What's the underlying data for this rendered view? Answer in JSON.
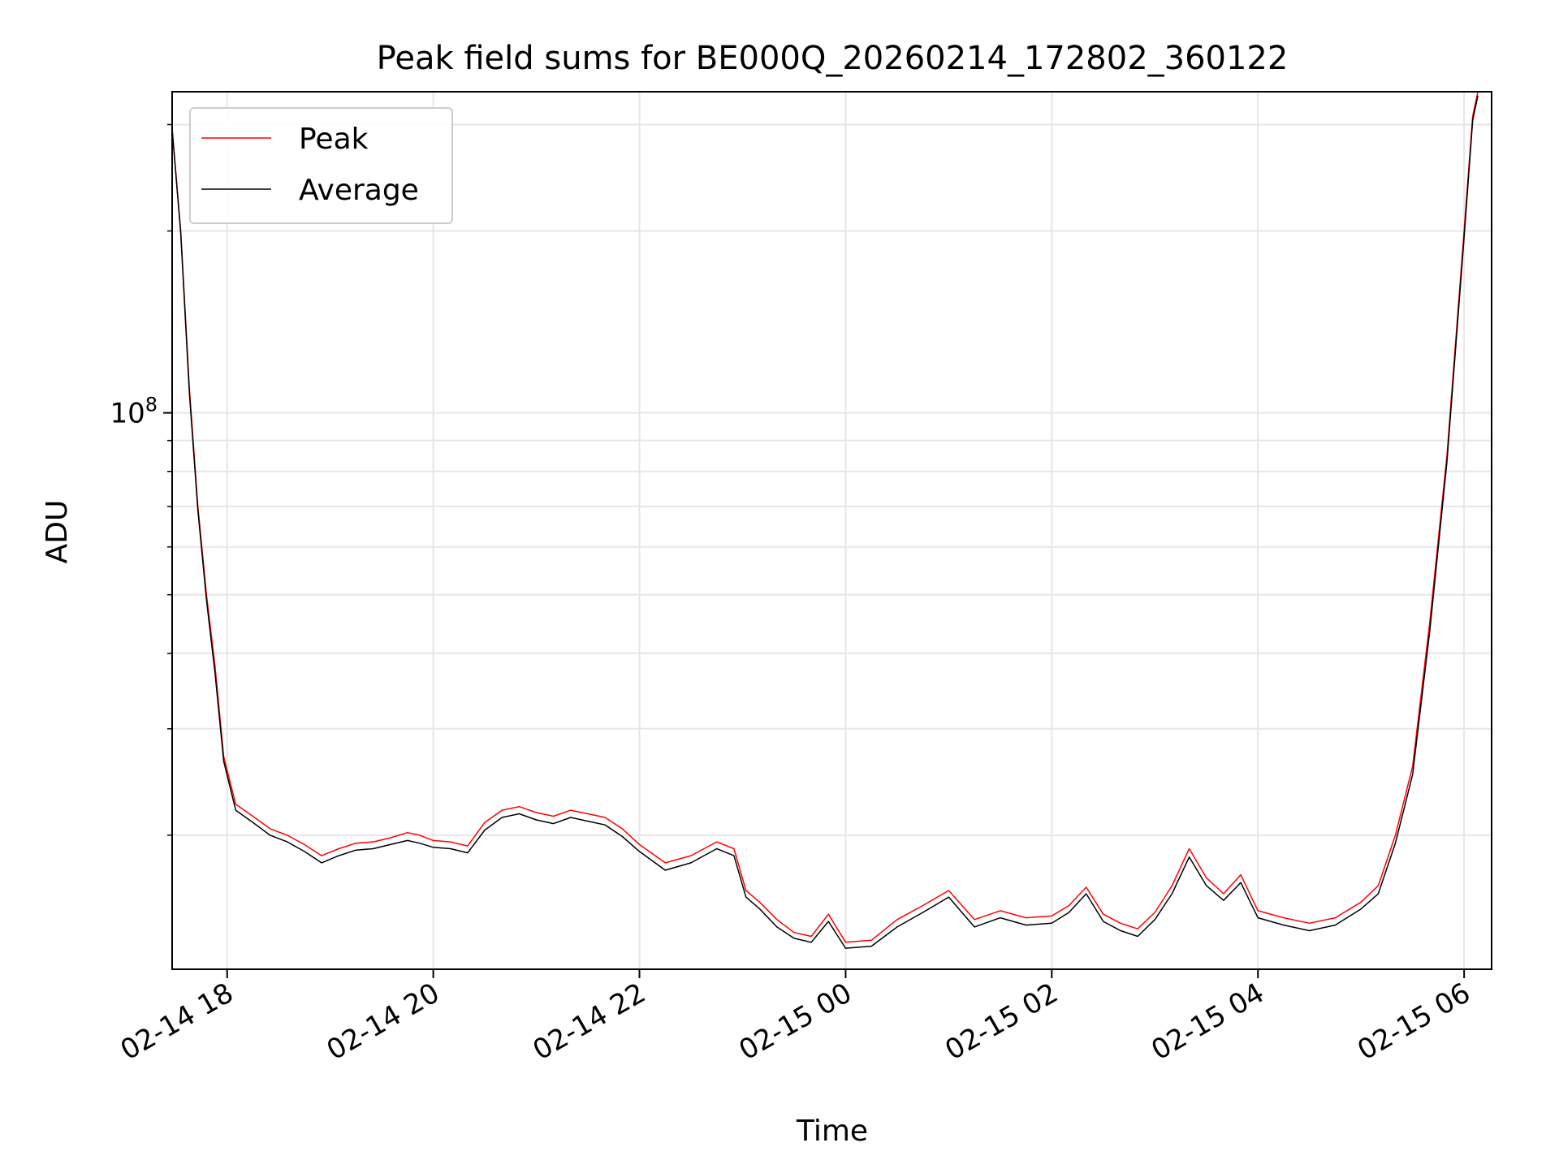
{
  "chart_data": {
    "type": "line",
    "title": "Peak field sums for BE000Q_20260214_172802_360122",
    "xlabel": "Time",
    "ylabel": "ADU",
    "yscale": "log",
    "grid": true,
    "legend_placement": "top-left",
    "xlim": [
      "2026-02-14 17:28",
      "2026-02-15 06:16"
    ],
    "ylim": [
      12000000,
      340000000
    ],
    "x_ticks": [
      {
        "value": "2026-02-14 18:00",
        "label": "02-14 18"
      },
      {
        "value": "2026-02-14 20:00",
        "label": "02-14 20"
      },
      {
        "value": "2026-02-14 22:00",
        "label": "02-14 22"
      },
      {
        "value": "2026-02-15 00:00",
        "label": "02-15 00"
      },
      {
        "value": "2026-02-15 02:00",
        "label": "02-15 02"
      },
      {
        "value": "2026-02-15 04:00",
        "label": "02-15 04"
      },
      {
        "value": "2026-02-15 06:00",
        "label": "02-15 06"
      }
    ],
    "y_major_ticks": [
      {
        "value": 100000000,
        "base": "10",
        "exp": "8"
      }
    ],
    "y_minor_ticks": [
      20000000,
      30000000,
      40000000,
      50000000,
      60000000,
      70000000,
      80000000,
      90000000,
      200000000,
      300000000
    ],
    "series": [
      {
        "name": "Peak",
        "color": "#ff0000",
        "x": [
          "2026-02-14 17:28",
          "2026-02-14 17:33",
          "2026-02-14 17:38",
          "2026-02-14 17:43",
          "2026-02-14 17:48",
          "2026-02-14 17:53",
          "2026-02-14 17:58",
          "2026-02-14 18:05",
          "2026-02-14 18:15",
          "2026-02-14 18:25",
          "2026-02-14 18:35",
          "2026-02-14 18:45",
          "2026-02-14 18:55",
          "2026-02-14 19:05",
          "2026-02-14 19:15",
          "2026-02-14 19:25",
          "2026-02-14 19:35",
          "2026-02-14 19:45",
          "2026-02-14 19:52",
          "2026-02-14 20:00",
          "2026-02-14 20:10",
          "2026-02-14 20:20",
          "2026-02-14 20:30",
          "2026-02-14 20:40",
          "2026-02-14 20:50",
          "2026-02-14 21:00",
          "2026-02-14 21:10",
          "2026-02-14 21:20",
          "2026-02-14 21:30",
          "2026-02-14 21:40",
          "2026-02-14 21:50",
          "2026-02-14 22:00",
          "2026-02-14 22:15",
          "2026-02-14 22:30",
          "2026-02-14 22:45",
          "2026-02-14 22:55",
          "2026-02-14 23:02",
          "2026-02-14 23:10",
          "2026-02-14 23:20",
          "2026-02-14 23:30",
          "2026-02-14 23:40",
          "2026-02-14 23:50",
          "2026-02-15 00:00",
          "2026-02-15 00:15",
          "2026-02-15 00:30",
          "2026-02-15 00:45",
          "2026-02-15 01:00",
          "2026-02-15 01:15",
          "2026-02-15 01:30",
          "2026-02-15 01:45",
          "2026-02-15 02:00",
          "2026-02-15 02:10",
          "2026-02-15 02:20",
          "2026-02-15 02:30",
          "2026-02-15 02:40",
          "2026-02-15 02:50",
          "2026-02-15 03:00",
          "2026-02-15 03:10",
          "2026-02-15 03:20",
          "2026-02-15 03:30",
          "2026-02-15 03:40",
          "2026-02-15 03:50",
          "2026-02-15 04:00",
          "2026-02-15 04:15",
          "2026-02-15 04:30",
          "2026-02-15 04:45",
          "2026-02-15 05:00",
          "2026-02-15 05:10",
          "2026-02-15 05:20",
          "2026-02-15 05:30",
          "2026-02-15 05:40",
          "2026-02-15 05:50",
          "2026-02-15 06:00",
          "2026-02-15 06:05",
          "2026-02-15 06:08"
        ],
        "values": [
          295000000,
          200000000,
          110000000,
          70000000,
          50000000,
          38000000,
          27000000,
          22500000,
          21500000,
          20500000,
          20000000,
          19300000,
          18500000,
          19000000,
          19400000,
          19500000,
          19800000,
          20200000,
          20000000,
          19600000,
          19500000,
          19200000,
          21000000,
          22000000,
          22300000,
          21800000,
          21500000,
          22000000,
          21700000,
          21400000,
          20500000,
          19300000,
          18000000,
          18500000,
          19500000,
          19000000,
          16200000,
          15500000,
          14500000,
          13800000,
          13600000,
          14800000,
          13300000,
          13400000,
          14500000,
          15300000,
          16200000,
          14500000,
          15000000,
          14600000,
          14700000,
          15300000,
          16400000,
          14800000,
          14300000,
          14000000,
          14900000,
          16500000,
          19000000,
          17000000,
          16000000,
          17200000,
          15000000,
          14600000,
          14300000,
          14600000,
          15500000,
          16500000,
          20000000,
          26000000,
          45000000,
          85000000,
          200000000,
          310000000,
          340000000
        ]
      },
      {
        "name": "Average",
        "color": "#000000",
        "x": [
          "2026-02-14 17:28",
          "2026-02-14 17:33",
          "2026-02-14 17:38",
          "2026-02-14 17:43",
          "2026-02-14 17:48",
          "2026-02-14 17:53",
          "2026-02-14 17:58",
          "2026-02-14 18:05",
          "2026-02-14 18:15",
          "2026-02-14 18:25",
          "2026-02-14 18:35",
          "2026-02-14 18:45",
          "2026-02-14 18:55",
          "2026-02-14 19:05",
          "2026-02-14 19:15",
          "2026-02-14 19:25",
          "2026-02-14 19:35",
          "2026-02-14 19:45",
          "2026-02-14 19:52",
          "2026-02-14 20:00",
          "2026-02-14 20:10",
          "2026-02-14 20:20",
          "2026-02-14 20:30",
          "2026-02-14 20:40",
          "2026-02-14 20:50",
          "2026-02-14 21:00",
          "2026-02-14 21:10",
          "2026-02-14 21:20",
          "2026-02-14 21:30",
          "2026-02-14 21:40",
          "2026-02-14 21:50",
          "2026-02-14 22:00",
          "2026-02-14 22:15",
          "2026-02-14 22:30",
          "2026-02-14 22:45",
          "2026-02-14 22:55",
          "2026-02-14 23:02",
          "2026-02-14 23:10",
          "2026-02-14 23:20",
          "2026-02-14 23:30",
          "2026-02-14 23:40",
          "2026-02-14 23:50",
          "2026-02-15 00:00",
          "2026-02-15 00:15",
          "2026-02-15 00:30",
          "2026-02-15 00:45",
          "2026-02-15 01:00",
          "2026-02-15 01:15",
          "2026-02-15 01:30",
          "2026-02-15 01:45",
          "2026-02-15 02:00",
          "2026-02-15 02:10",
          "2026-02-15 02:20",
          "2026-02-15 02:30",
          "2026-02-15 02:40",
          "2026-02-15 02:50",
          "2026-02-15 03:00",
          "2026-02-15 03:10",
          "2026-02-15 03:20",
          "2026-02-15 03:30",
          "2026-02-15 03:40",
          "2026-02-15 03:50",
          "2026-02-15 04:00",
          "2026-02-15 04:15",
          "2026-02-15 04:30",
          "2026-02-15 04:45",
          "2026-02-15 05:00",
          "2026-02-15 05:10",
          "2026-02-15 05:20",
          "2026-02-15 05:30",
          "2026-02-15 05:40",
          "2026-02-15 05:50",
          "2026-02-15 06:00",
          "2026-02-15 06:05",
          "2026-02-15 06:08"
        ],
        "values": [
          295000000,
          198000000,
          108000000,
          69000000,
          49000000,
          37000000,
          26500000,
          22000000,
          21000000,
          20000000,
          19500000,
          18800000,
          18000000,
          18500000,
          18900000,
          19000000,
          19300000,
          19600000,
          19400000,
          19100000,
          19000000,
          18700000,
          20400000,
          21400000,
          21700000,
          21200000,
          20900000,
          21400000,
          21100000,
          20800000,
          19900000,
          18800000,
          17500000,
          18000000,
          19000000,
          18500000,
          15800000,
          15100000,
          14100000,
          13500000,
          13300000,
          14400000,
          13000000,
          13100000,
          14100000,
          14900000,
          15800000,
          14100000,
          14600000,
          14200000,
          14300000,
          14900000,
          16000000,
          14400000,
          13900000,
          13600000,
          14500000,
          16000000,
          18400000,
          16500000,
          15600000,
          16700000,
          14600000,
          14200000,
          13900000,
          14200000,
          15100000,
          16000000,
          19400000,
          25200000,
          43500000,
          83000000,
          195000000,
          305000000,
          335000000
        ]
      }
    ]
  }
}
